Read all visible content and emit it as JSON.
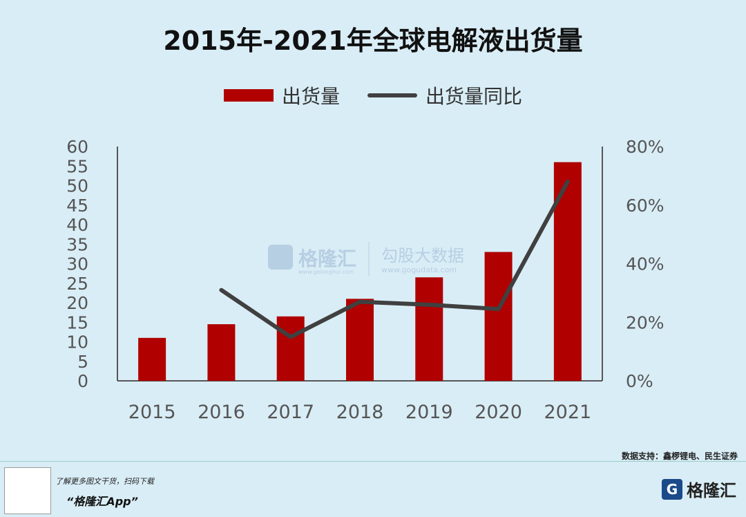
{
  "chart_data": {
    "type": "bar",
    "title": "2015年-2021年全球电解液出货量",
    "categories": [
      "2015",
      "2016",
      "2017",
      "2018",
      "2019",
      "2020",
      "2021"
    ],
    "series": [
      {
        "name": "出货量",
        "type": "bar",
        "axis": "left",
        "color": "#b00000",
        "values": [
          11,
          14.5,
          16.5,
          21,
          26.5,
          33,
          56
        ]
      },
      {
        "name": "出货量同比",
        "type": "line",
        "axis": "right",
        "color": "#404040",
        "values": [
          null,
          31,
          15,
          27,
          26,
          24.5,
          68
        ]
      }
    ],
    "y_left": {
      "min": 0,
      "max": 60,
      "step": 5,
      "ticks": [
        "0",
        "5",
        "10",
        "15",
        "20",
        "25",
        "30",
        "35",
        "40",
        "45",
        "50",
        "55",
        "60"
      ]
    },
    "y_right": {
      "min": 0,
      "max": 80,
      "step": 20,
      "ticks": [
        "0%",
        "20%",
        "40%",
        "60%",
        "80%"
      ]
    },
    "legend": "top-center",
    "grid": false
  },
  "watermark": {
    "brand": "格隆汇",
    "brand_url": "www.gelonghui.com",
    "data_brand": "勾股大数据",
    "data_url": "www.gogudata.com"
  },
  "source": "数据支持：鑫椤锂电、民生证券",
  "footer": {
    "promo": "了解更多图文干货，扫码下载",
    "app_name": "“格隆汇App”",
    "logo_text": "格隆汇",
    "logo_glyph": "G"
  }
}
